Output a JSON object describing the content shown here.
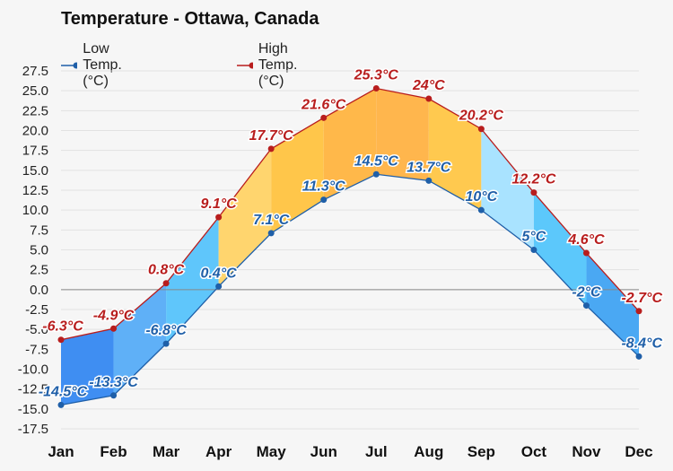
{
  "chart_data": {
    "type": "line",
    "title": "Temperature - Ottawa, Canada",
    "categories": [
      "Jan",
      "Feb",
      "Mar",
      "Apr",
      "May",
      "Jun",
      "Jul",
      "Aug",
      "Sep",
      "Oct",
      "Nov",
      "Dec"
    ],
    "series": [
      {
        "name": "Low Temp. (°C)",
        "color": "#1f5fa8",
        "values": [
          -14.5,
          -13.3,
          -6.8,
          0.4,
          7.1,
          11.3,
          14.5,
          13.7,
          10,
          5,
          -2,
          -8.4
        ],
        "labels": [
          "-14.5°C",
          "-13.3°C",
          "-6.8°C",
          "0.4°C",
          "7.1°C",
          "11.3°C",
          "14.5°C",
          "13.7°C",
          "10°C",
          "5°C",
          "-2°C",
          "-8.4°C"
        ]
      },
      {
        "name": "High Temp. (°C)",
        "color": "#b81d1d",
        "values": [
          -6.3,
          -4.9,
          0.8,
          9.1,
          17.7,
          21.6,
          25.3,
          24,
          20.2,
          12.2,
          4.6,
          -2.7
        ],
        "labels": [
          "-6.3°C",
          "-4.9°C",
          "0.8°C",
          "9.1°C",
          "17.7°C",
          "21.6°C",
          "25.3°C",
          "24°C",
          "20.2°C",
          "12.2°C",
          "4.6°C",
          "-2.7°C"
        ]
      }
    ],
    "ylim": [
      -17.5,
      27.5
    ],
    "yticks": [
      27.5,
      25.0,
      22.5,
      20.0,
      17.5,
      15.0,
      12.5,
      10.0,
      7.5,
      5.0,
      2.5,
      0.0,
      -2.5,
      -5.0,
      -7.5,
      -10.0,
      -12.5,
      -15.0,
      -17.5
    ],
    "ytick_labels": [
      "27.5",
      "25.0",
      "22.5",
      "20.0",
      "17.5",
      "15.0",
      "12.5",
      "10.0",
      "7.5",
      "5.0",
      "2.5",
      "0.0",
      "-2.5",
      "-5.0",
      "-7.5",
      "-10.0",
      "-12.5",
      "-15.0",
      "-17.5"
    ],
    "grid": true,
    "legend_position": "top-left",
    "band_colors_by_month": [
      "#3f8ef2",
      "#5fb0f7",
      "#5fc6fb",
      "#ffd56e",
      "#ffc64a",
      "#ffb84a",
      "#ffb64d",
      "#ffc94f",
      "#a9e3ff",
      "#5cc8fb",
      "#4aa8f3",
      "#3f8ef2"
    ]
  }
}
